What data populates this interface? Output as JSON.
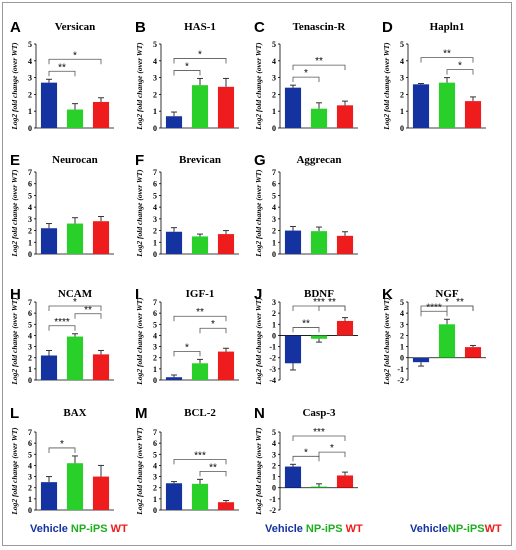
{
  "colors": {
    "vehicle": "#1533a0",
    "np": "#2ad02a",
    "wt": "#ee1c1c"
  },
  "legend": {
    "vehicle": "Vehicle",
    "np": "NP-iPS",
    "wt": "WT"
  },
  "chart_data": [
    {
      "letter": "A",
      "title": "Versican",
      "type": "bar",
      "ylabel": "Log2 fold change (over WT)",
      "ylim": [
        0,
        5
      ],
      "series": [
        {
          "name": "Vehicle",
          "value": 2.7,
          "err": 0.2
        },
        {
          "name": "NP-iPS",
          "value": 1.1,
          "err": 0.35
        },
        {
          "name": "WT",
          "value": 1.55,
          "err": 0.25
        }
      ],
      "annotations": [
        {
          "from": 0,
          "to": 1,
          "label": "**"
        },
        {
          "from": 0,
          "to": 2,
          "label": "*"
        }
      ]
    },
    {
      "letter": "B",
      "title": "HAS-1",
      "type": "bar",
      "ylabel": "Log2 fold change (over WT)",
      "ylim": [
        0,
        5
      ],
      "series": [
        {
          "name": "Vehicle",
          "value": 0.7,
          "err": 0.25
        },
        {
          "name": "NP-iPS",
          "value": 2.55,
          "err": 0.4
        },
        {
          "name": "WT",
          "value": 2.45,
          "err": 0.5
        }
      ],
      "annotations": [
        {
          "from": 0,
          "to": 1,
          "label": "*"
        },
        {
          "from": 0,
          "to": 2,
          "label": "*"
        }
      ]
    },
    {
      "letter": "C",
      "title": "Tenascin-R",
      "type": "bar",
      "ylabel": "Log2 fold change (over WT)",
      "ylim": [
        0,
        5
      ],
      "series": [
        {
          "name": "Vehicle",
          "value": 2.4,
          "err": 0.15
        },
        {
          "name": "NP-iPS",
          "value": 1.15,
          "err": 0.35
        },
        {
          "name": "WT",
          "value": 1.35,
          "err": 0.25
        }
      ],
      "annotations": [
        {
          "from": 0,
          "to": 1,
          "label": "*"
        },
        {
          "from": 0,
          "to": 2,
          "label": "**"
        }
      ]
    },
    {
      "letter": "D",
      "title": "Hapln1",
      "type": "bar",
      "ylabel": "Log2 fold change (over WT)",
      "ylim": [
        0,
        5
      ],
      "series": [
        {
          "name": "Vehicle",
          "value": 2.6,
          "err": 0.05
        },
        {
          "name": "NP-iPS",
          "value": 2.7,
          "err": 0.3
        },
        {
          "name": "WT",
          "value": 1.6,
          "err": 0.25
        }
      ],
      "annotations": [
        {
          "from": 1,
          "to": 2,
          "label": "*"
        },
        {
          "from": 0,
          "to": 2,
          "label": "**"
        }
      ]
    },
    {
      "letter": "E",
      "title": "Neurocan",
      "type": "bar",
      "ylabel": "Log2 fold change (over WT)",
      "ylim": [
        0,
        7
      ],
      "series": [
        {
          "name": "Vehicle",
          "value": 2.2,
          "err": 0.4
        },
        {
          "name": "NP-iPS",
          "value": 2.6,
          "err": 0.5
        },
        {
          "name": "WT",
          "value": 2.8,
          "err": 0.4
        }
      ],
      "annotations": []
    },
    {
      "letter": "F",
      "title": "Brevican",
      "type": "bar",
      "ylabel": "Log2 fold change (over WT)",
      "ylim": [
        0,
        7
      ],
      "series": [
        {
          "name": "Vehicle",
          "value": 1.9,
          "err": 0.35
        },
        {
          "name": "NP-iPS",
          "value": 1.5,
          "err": 0.2
        },
        {
          "name": "WT",
          "value": 1.7,
          "err": 0.3
        }
      ],
      "annotations": []
    },
    {
      "letter": "G",
      "title": "Aggrecan",
      "type": "bar",
      "ylabel": "Log2 fold change (over WT)",
      "ylim": [
        0,
        7
      ],
      "series": [
        {
          "name": "Vehicle",
          "value": 2.0,
          "err": 0.35
        },
        {
          "name": "NP-iPS",
          "value": 1.95,
          "err": 0.35
        },
        {
          "name": "WT",
          "value": 1.55,
          "err": 0.35
        }
      ],
      "annotations": []
    },
    {
      "letter": "H",
      "title": "NCAM",
      "type": "bar",
      "ylabel": "Log2 fold change (over WT)",
      "ylim": [
        0,
        7
      ],
      "series": [
        {
          "name": "Vehicle",
          "value": 2.2,
          "err": 0.45
        },
        {
          "name": "NP-iPS",
          "value": 3.9,
          "err": 0.25
        },
        {
          "name": "WT",
          "value": 2.3,
          "err": 0.35
        }
      ],
      "annotations": [
        {
          "from": 0,
          "to": 1,
          "label": "****"
        },
        {
          "from": 1,
          "to": 2,
          "label": "**"
        },
        {
          "from": 0,
          "to": 2,
          "label": "*"
        }
      ]
    },
    {
      "letter": "I",
      "title": "IGF-1",
      "type": "bar",
      "ylabel": "Log2 fold change (over WT)",
      "ylim": [
        0,
        7
      ],
      "series": [
        {
          "name": "Vehicle",
          "value": 0.25,
          "err": 0.2
        },
        {
          "name": "NP-iPS",
          "value": 1.5,
          "err": 0.35
        },
        {
          "name": "WT",
          "value": 2.55,
          "err": 0.3
        }
      ],
      "annotations": [
        {
          "from": 0,
          "to": 1,
          "label": "*"
        },
        {
          "from": 1,
          "to": 2,
          "label": "*"
        },
        {
          "from": 0,
          "to": 2,
          "label": "**"
        }
      ]
    },
    {
      "letter": "J",
      "title": "BDNF",
      "type": "bar",
      "ylabel": "Log2 fold change (over WT)",
      "ylim": [
        -4,
        3
      ],
      "series": [
        {
          "name": "Vehicle",
          "value": -2.5,
          "err": 0.6
        },
        {
          "name": "NP-iPS",
          "value": -0.3,
          "err": 0.3
        },
        {
          "name": "WT",
          "value": 1.3,
          "err": 0.3
        }
      ],
      "annotations": [
        {
          "from": 0,
          "to": 1,
          "label": "**"
        },
        {
          "from": 1,
          "to": 2,
          "label": "**"
        },
        {
          "from": 0,
          "to": 2,
          "label": "***"
        }
      ]
    },
    {
      "letter": "K",
      "title": "NGF",
      "type": "bar",
      "ylabel": "Log2 fold change (over WT)",
      "ylim": [
        -2,
        5
      ],
      "series": [
        {
          "name": "Vehicle",
          "value": -0.4,
          "err": 0.35
        },
        {
          "name": "NP-iPS",
          "value": 3.0,
          "err": 0.45
        },
        {
          "name": "WT",
          "value": 0.95,
          "err": 0.15
        }
      ],
      "annotations": [
        {
          "from": 0,
          "to": 1,
          "label": "****"
        },
        {
          "from": 1,
          "to": 2,
          "label": "**"
        },
        {
          "from": 0,
          "to": 2,
          "label": "*"
        }
      ]
    },
    {
      "letter": "L",
      "title": "BAX",
      "type": "bar",
      "ylabel": "Log2 fold change (over WT)",
      "ylim": [
        0,
        7
      ],
      "series": [
        {
          "name": "Vehicle",
          "value": 2.5,
          "err": 0.5
        },
        {
          "name": "NP-iPS",
          "value": 4.2,
          "err": 0.65
        },
        {
          "name": "WT",
          "value": 3.0,
          "err": 1.0
        }
      ],
      "annotations": [
        {
          "from": 0,
          "to": 1,
          "label": "*"
        }
      ]
    },
    {
      "letter": "M",
      "title": "BCL-2",
      "type": "bar",
      "ylabel": "Log2 fold change (over WT)",
      "ylim": [
        0,
        7
      ],
      "series": [
        {
          "name": "Vehicle",
          "value": 2.4,
          "err": 0.15
        },
        {
          "name": "NP-iPS",
          "value": 2.35,
          "err": 0.4
        },
        {
          "name": "WT",
          "value": 0.7,
          "err": 0.15
        }
      ],
      "annotations": [
        {
          "from": 1,
          "to": 2,
          "label": "**"
        },
        {
          "from": 0,
          "to": 2,
          "label": "***"
        }
      ]
    },
    {
      "letter": "N",
      "title": "Casp-3",
      "type": "bar",
      "ylabel": "Log2 fold change (over WT)",
      "ylim": [
        -2,
        5
      ],
      "series": [
        {
          "name": "Vehicle",
          "value": 1.9,
          "err": 0.2
        },
        {
          "name": "NP-iPS",
          "value": 0.1,
          "err": 0.25
        },
        {
          "name": "WT",
          "value": 1.1,
          "err": 0.3
        }
      ],
      "annotations": [
        {
          "from": 0,
          "to": 1,
          "label": "*"
        },
        {
          "from": 1,
          "to": 2,
          "label": "*"
        },
        {
          "from": 0,
          "to": 2,
          "label": "***"
        }
      ]
    }
  ]
}
